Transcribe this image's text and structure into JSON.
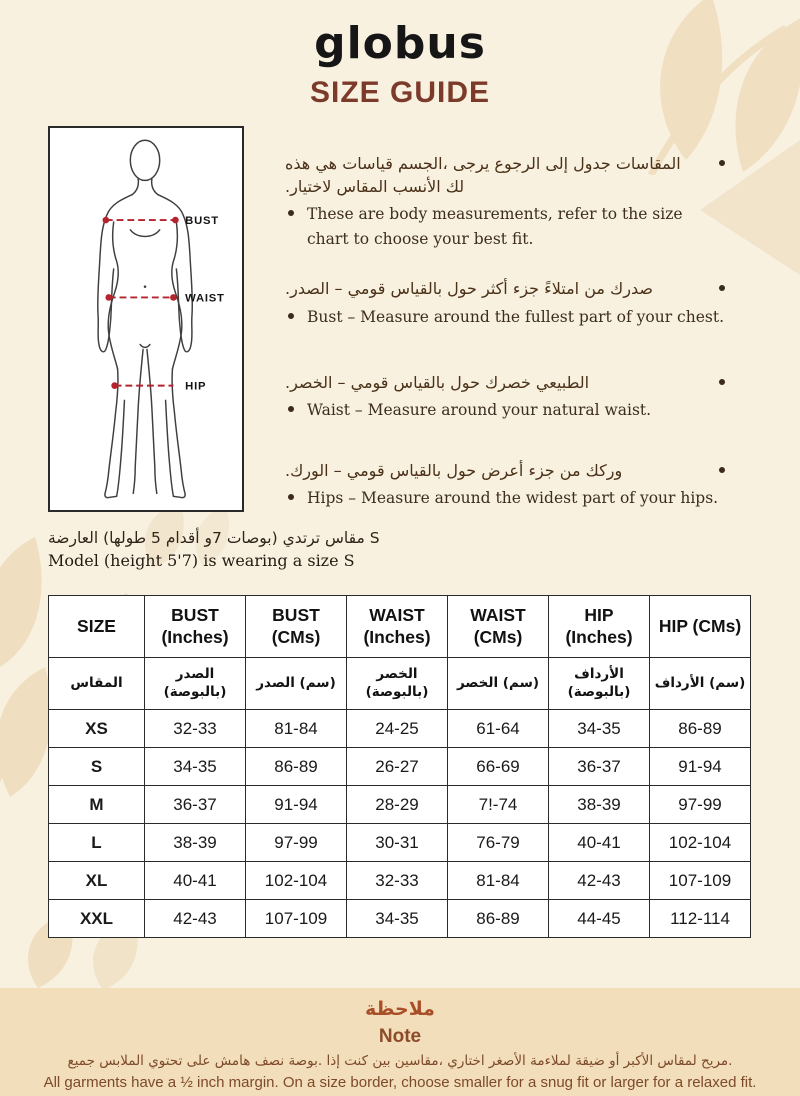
{
  "brand": "globus",
  "page_title": "SIZE GUIDE",
  "diagram": {
    "bust_label": "BUST",
    "waist_label": "WAIST",
    "hip_label": "HIP"
  },
  "intro_bullets": {
    "b1_ar_line1": "هذه هي قياسات الجسم، يرجى الرجوع إلى جدول المقاسات",
    "b1_ar_line2": ".لاختيار المقاس الأنسب لك",
    "b1_en": "These are body measurements, refer to the size chart to choose your best fit.",
    "b2_ar": ".الصدر – قومي بالقياس حول أكثر جزء امتلاءً من صدرك",
    "b2_en": "Bust – Measure around the fullest part of your chest.",
    "b3_ar": ".الخصر – قومي بالقياس حول خصرك الطبيعي",
    "b3_en": "Waist – Measure around your natural waist.",
    "b4_ar": ".الورك – قومي بالقياس حول أعرض جزء من وركك",
    "b4_en": "Hips – Measure around the widest part of your hips."
  },
  "model_note": {
    "ar": "العارضة (طولها 5 أقدام و7 بوصات) ترتدي مقاس S",
    "en": "Model (height 5'7) is wearing a size S"
  },
  "size_table": {
    "headers_en": [
      "SIZE",
      "BUST (Inches)",
      "BUST (CMs)",
      "WAIST (Inches)",
      "WAIST (CMs)",
      "HIP (Inches)",
      "HIP (CMs)"
    ],
    "headers_ar": [
      "المقاس",
      "الصدر (بالبوصة)",
      "الصدر (سم)",
      "الخصر (بالبوصة)",
      "الخصر (سم)",
      "الأرداف (بالبوصة)",
      "الأرداف (سم)"
    ],
    "rows": [
      {
        "size": "XS",
        "cells": [
          "32-33",
          "81-84",
          "24-25",
          "61-64",
          "34-35",
          "86-89"
        ]
      },
      {
        "size": "S",
        "cells": [
          "34-35",
          "86-89",
          "26-27",
          "66-69",
          "36-37",
          "91-94"
        ]
      },
      {
        "size": "M",
        "cells": [
          "36-37",
          "91-94",
          "28-29",
          "7!-74",
          "38-39",
          "97-99"
        ]
      },
      {
        "size": "L",
        "cells": [
          "38-39",
          "97-99",
          "30-31",
          "76-79",
          "40-41",
          "102-104"
        ]
      },
      {
        "size": "XL",
        "cells": [
          "40-41",
          "102-104",
          "32-33",
          "81-84",
          "42-43",
          "107-109"
        ]
      },
      {
        "size": "XXL",
        "cells": [
          "42-43",
          "107-109",
          "34-35",
          "86-89",
          "44-45",
          "112-114"
        ]
      }
    ]
  },
  "note": {
    "title_ar": "ملاحظة",
    "title_en": "Note",
    "body_ar": "جميع الملابس تحتوي على هامش نصف بوصة. إذا كنت بين مقاسين، اختاري الأصغر لملاءمة ضيقة أو الأكبر لمقاس مريح.",
    "body_en": "All garments have a ½ inch margin. On a size border, choose smaller for a snug fit or larger for a relaxed fit."
  },
  "colors": {
    "background": "#f8f1e0",
    "leaf": "#f0dfc1",
    "title_brown": "#7c3a2a",
    "measure_red": "#b5232d",
    "note_band": "#f2debb",
    "note_accent": "#a94f28",
    "table_border": "#2b2b2b"
  }
}
